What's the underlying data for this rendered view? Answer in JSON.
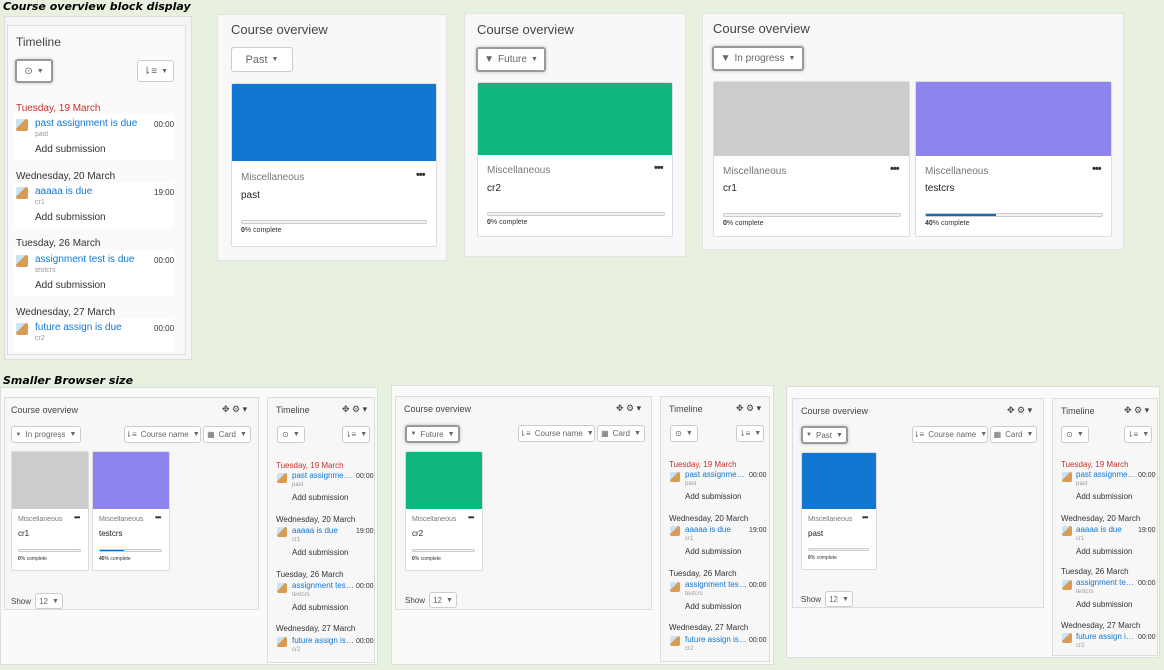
{
  "captions": {
    "top": "Course overview block display",
    "bottom": "Smaller Browser size"
  },
  "timeline_title": "Timeline",
  "course_overview_title": "Course overview",
  "filters": {
    "past": "Past",
    "future": "Future",
    "in_progress": "In progress",
    "course_name": "Course name",
    "card": "Card"
  },
  "show_label": "Show",
  "show_count": "12",
  "more_menu": "•••",
  "header_icons": "✥ ⚙ ▾",
  "timeline": [
    {
      "date": "Tuesday, 19 March",
      "overdue": true,
      "title": "past assignment is due",
      "title_short": "past assignmen...",
      "course": "past",
      "time": "00:00",
      "action": "Add submission"
    },
    {
      "date": "Wednesday, 20 March",
      "overdue": false,
      "title": "aaaaa is due",
      "title_short": "aaaaa is due",
      "course": "cr1",
      "time": "19:00",
      "action": "Add submission"
    },
    {
      "date": "Tuesday, 26 March",
      "overdue": false,
      "title": "assignment test is due",
      "title_short": "assignment test...",
      "course": "testcrs",
      "time": "00:00",
      "action": "Add submission"
    },
    {
      "date": "Wednesday, 27 March",
      "overdue": false,
      "title": "future assign is due",
      "title_short": "future assign is ...",
      "course": "cr2",
      "time": "00:00",
      "action": "Add submission"
    }
  ],
  "courses": {
    "past": {
      "category": "Miscellaneous",
      "category_short": "Miscellaneous",
      "name": "past",
      "progress": 0,
      "progress_label": "% complete",
      "pct_num": "0",
      "color": "#1177d1"
    },
    "cr2": {
      "category": "Miscellaneous",
      "category_short": "Miscellaneous",
      "name": "cr2",
      "progress": 0,
      "progress_label": "% complete",
      "pct_num": "0",
      "color": "#10b57f"
    },
    "cr1": {
      "category": "Miscellaneous",
      "category_short": "Miscellaneous",
      "name": "cr1",
      "progress": 0,
      "progress_label": "% complete",
      "pct_num": "0",
      "color": "#cfd1d3"
    },
    "testcrs": {
      "category": "Miscellaneous",
      "category_short": "Miscellaneous",
      "name": "testcrs",
      "progress": 40,
      "progress_label": "% complete",
      "pct_num": "40",
      "color": "#8d84ee"
    }
  }
}
